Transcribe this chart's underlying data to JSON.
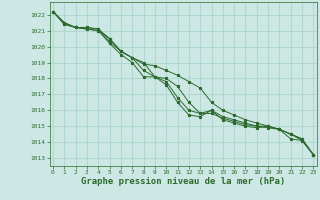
{
  "bg_color": "#cde8e4",
  "grid_color": "#b0d8d0",
  "line_color": "#2d6a2d",
  "marker_color": "#2d6a2d",
  "xlabel": "Graphe pression niveau de la mer (hPa)",
  "xlabel_fontsize": 6.5,
  "ylim": [
    1012.5,
    1022.8
  ],
  "xlim": [
    -0.3,
    23.3
  ],
  "yticks": [
    1013,
    1014,
    1015,
    1016,
    1017,
    1018,
    1019,
    1020,
    1021,
    1022
  ],
  "xticks": [
    0,
    1,
    2,
    3,
    4,
    5,
    6,
    7,
    8,
    9,
    10,
    11,
    12,
    13,
    14,
    15,
    16,
    17,
    18,
    19,
    20,
    21,
    22,
    23
  ],
  "series1_x": [
    0,
    1,
    2,
    3,
    4,
    5,
    6,
    7,
    8,
    9,
    10,
    11,
    12,
    13,
    14,
    15,
    16,
    17,
    18,
    19,
    20,
    21,
    22,
    23
  ],
  "series1_y": [
    1022.2,
    1021.5,
    1021.2,
    1021.2,
    1021.1,
    1020.5,
    1019.7,
    1019.3,
    1019.0,
    1018.1,
    1018.0,
    1017.5,
    1016.5,
    1015.8,
    1016.0,
    1015.6,
    1015.4,
    1015.2,
    1015.0,
    1015.0,
    1014.8,
    1014.2,
    1014.1,
    1013.2
  ],
  "series2_x": [
    0,
    1,
    2,
    3,
    4,
    5,
    6,
    7,
    8,
    9,
    10,
    11,
    12,
    13,
    14,
    15,
    16,
    17,
    18,
    19,
    20,
    21,
    22,
    23
  ],
  "series2_y": [
    1022.2,
    1021.5,
    1021.2,
    1021.2,
    1021.1,
    1020.3,
    1019.7,
    1019.3,
    1018.5,
    1018.1,
    1017.8,
    1016.8,
    1016.0,
    1015.8,
    1015.8,
    1015.5,
    1015.3,
    1015.1,
    1015.0,
    1014.9,
    1014.8,
    1014.5,
    1014.2,
    1013.2
  ],
  "series3_x": [
    0,
    1,
    2,
    3,
    4,
    5,
    6,
    7,
    8,
    9,
    10,
    11,
    12,
    13,
    14,
    15,
    16,
    17,
    18,
    19,
    20,
    21,
    22,
    23
  ],
  "series3_y": [
    1022.2,
    1021.4,
    1021.2,
    1021.1,
    1021.0,
    1020.2,
    1019.5,
    1019.0,
    1018.1,
    1018.1,
    1017.6,
    1016.5,
    1015.7,
    1015.6,
    1016.0,
    1015.4,
    1015.2,
    1015.0,
    1014.9,
    1015.0,
    1014.8,
    1014.5,
    1014.2,
    1013.2
  ],
  "series4_x": [
    0,
    1,
    2,
    3,
    4,
    5,
    6,
    7,
    8,
    9,
    10,
    11,
    12,
    13,
    14,
    15,
    16,
    17,
    18,
    19,
    20,
    21,
    22,
    23
  ],
  "series4_y": [
    1022.2,
    1021.4,
    1021.2,
    1021.1,
    1021.0,
    1020.5,
    1019.7,
    1019.3,
    1018.9,
    1018.8,
    1018.5,
    1018.2,
    1017.8,
    1017.4,
    1016.5,
    1016.0,
    1015.7,
    1015.4,
    1015.2,
    1015.0,
    1014.8,
    1014.5,
    1014.1,
    1013.2
  ]
}
